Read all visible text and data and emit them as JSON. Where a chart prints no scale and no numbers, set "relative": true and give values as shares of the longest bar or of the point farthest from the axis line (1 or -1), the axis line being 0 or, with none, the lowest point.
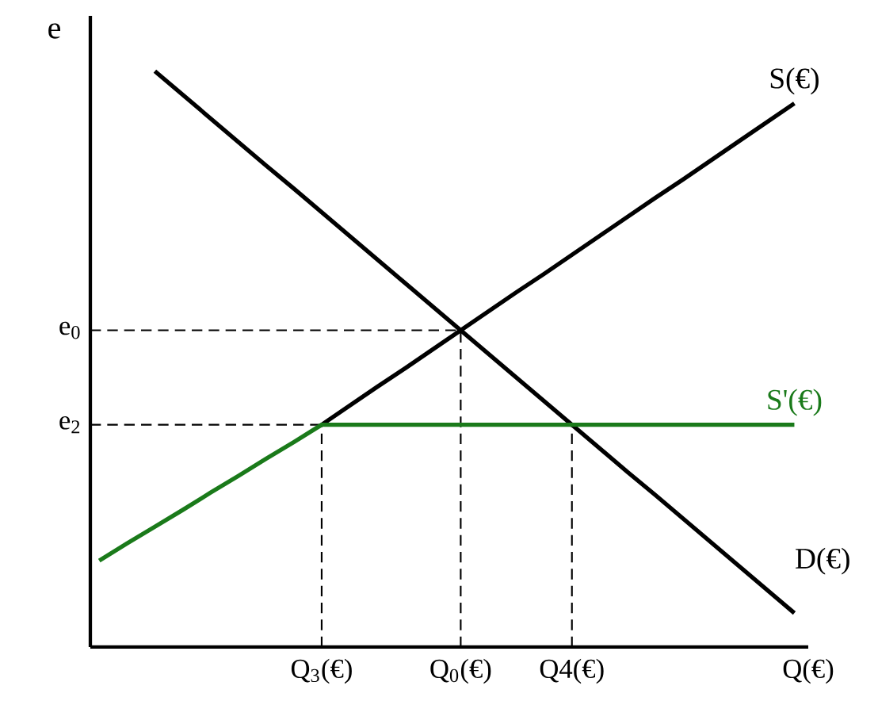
{
  "chart_data": {
    "type": "line",
    "relative": true,
    "xlabel": "Q(€)",
    "ylabel": "e",
    "legend": false,
    "categories": [
      null,
      null,
      null,
      null,
      null,
      null,
      null,
      null,
      "Q$_{3}$(€)",
      null,
      null,
      null,
      null,
      "Q$_{0}$(€)",
      null,
      null,
      null,
      "Q4(€)",
      null,
      null,
      null,
      null,
      null,
      null,
      null,
      null
    ],
    "ref_lines": [
      {
        "axis": "x",
        "value": "Q$_{3}$(€)",
        "line_style": "dashed"
      },
      {
        "axis": "x",
        "value": "Q$_{0}$(€)",
        "line_style": "dashed"
      },
      {
        "axis": "x",
        "value": "Q4(€)",
        "line_style": "dashed"
      },
      {
        "axis": "y",
        "value": 0.55,
        "label": "e$_{0}$",
        "line_style": "dashed"
      },
      {
        "axis": "y",
        "value": 0.386,
        "label": "e$_{2}$",
        "line_style": "dashed"
      }
    ],
    "series": [
      {
        "name": "D(€)",
        "color": "#000000",
        "values": [
          null,
          null,
          1,
          0.959,
          0.918,
          0.877,
          0.836,
          0.796,
          0.755,
          0.714,
          0.673,
          0.632,
          0.591,
          0.55,
          0.509,
          0.468,
          0.427,
          0.386,
          0.345,
          0.304,
          0.264,
          0.223,
          0.182,
          0.141,
          0.1,
          0.059
        ]
      },
      {
        "name": "S(€)",
        "color": "#000000",
        "values": [
          null,
          null,
          null,
          null,
          null,
          null,
          null,
          null,
          0.386,
          0.419,
          0.452,
          0.484,
          0.517,
          0.55,
          0.583,
          0.616,
          0.648,
          0.681,
          0.714,
          0.747,
          0.78,
          0.812,
          0.845,
          0.878,
          0.911,
          0.944
        ]
      },
      {
        "name": "S'(€)",
        "color": "#1a7a1a",
        "values": [
          0.15,
          0.18,
          0.209,
          0.238,
          0.268,
          0.297,
          0.327,
          0.356,
          0.386,
          0.386,
          0.386,
          0.386,
          0.386,
          0.386,
          0.386,
          0.386,
          0.386,
          0.386,
          0.386,
          0.386,
          0.386,
          0.386,
          0.386,
          0.386,
          0.386,
          0.386
        ]
      }
    ]
  }
}
